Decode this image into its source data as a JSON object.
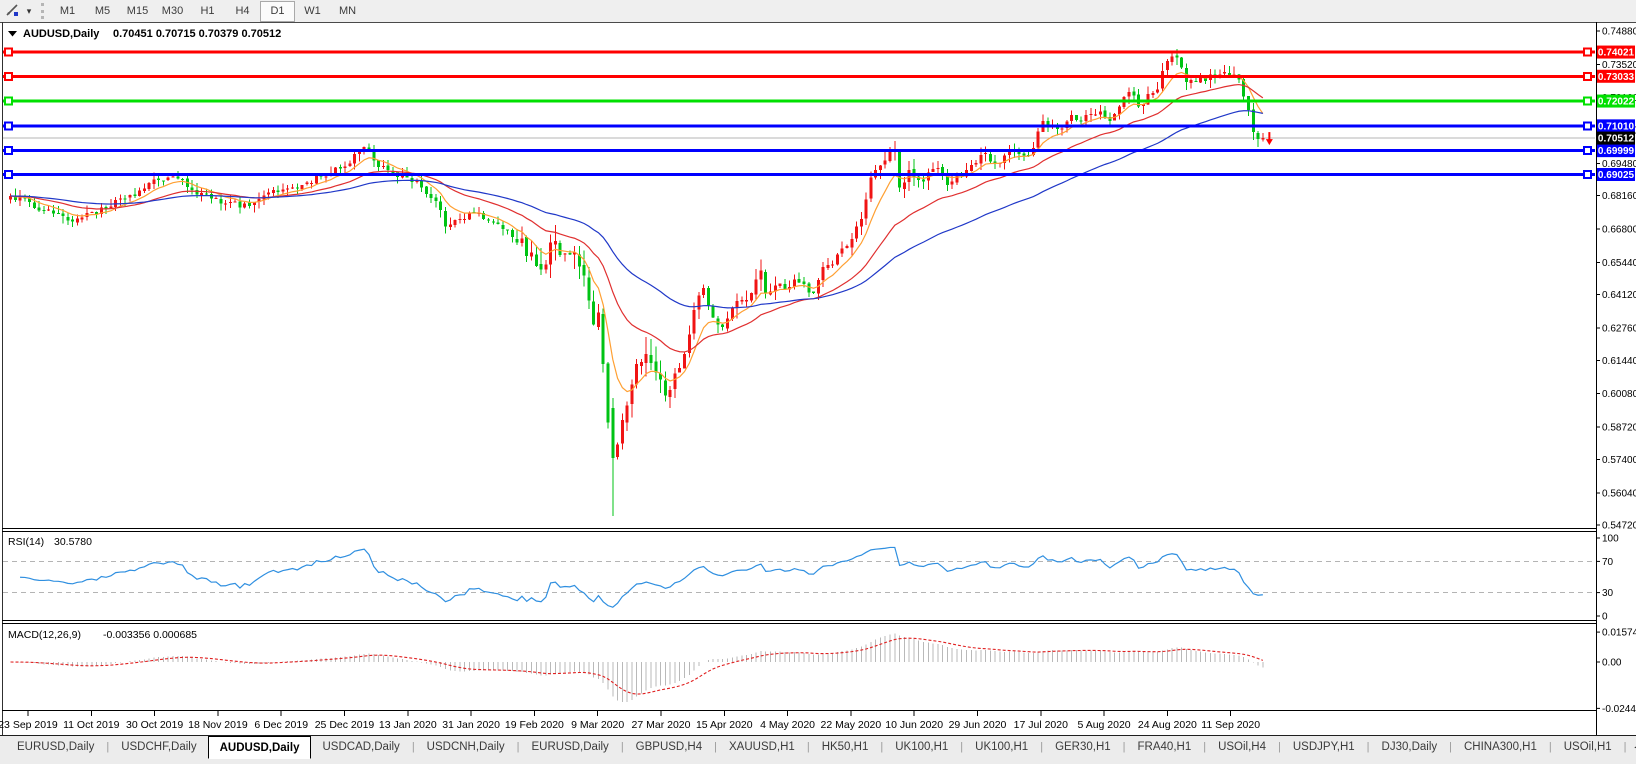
{
  "toolbar": {
    "tool_icon": "crosshair-tool",
    "tool_dropdown": "▾",
    "timeframes": [
      {
        "label": "M1",
        "active": false
      },
      {
        "label": "M5",
        "active": false
      },
      {
        "label": "M15",
        "active": false
      },
      {
        "label": "M30",
        "active": false
      },
      {
        "label": "H1",
        "active": false
      },
      {
        "label": "H4",
        "active": false
      },
      {
        "label": "D1",
        "active": true
      },
      {
        "label": "W1",
        "active": false
      },
      {
        "label": "MN",
        "active": false
      }
    ]
  },
  "chart": {
    "symbol_label": "AUDUSD,Daily",
    "ohlc": "0.70451 0.70715 0.70379 0.70512",
    "rsi_label": "RSI(14)",
    "rsi_value": "30.5780",
    "macd_label": "MACD(12,26,9)",
    "macd_values": "-0.003356 0.000685"
  },
  "chart_data": {
    "type": "candlestick",
    "symbol": "AUDUSD",
    "timeframe": "Daily",
    "last_ohlc": {
      "open": 0.70451,
      "high": 0.70715,
      "low": 0.70379,
      "close": 0.70512
    },
    "ylim": [
      0.5464,
      0.7505
    ],
    "y_ticks": [
      "0.74880",
      "0.73520",
      "0.72160",
      "0.70840",
      "0.69480",
      "0.68160",
      "0.66800",
      "0.65440",
      "0.64120",
      "0.62760",
      "0.61440",
      "0.60080",
      "0.58720",
      "0.57400",
      "0.56040",
      "0.54720"
    ],
    "x_labels": [
      "23 Sep 2019",
      "11 Oct 2019",
      "30 Oct 2019",
      "18 Nov 2019",
      "6 Dec 2019",
      "25 Dec 2019",
      "13 Jan 2020",
      "31 Jan 2020",
      "19 Feb 2020",
      "9 Mar 2020",
      "27 Mar 2020",
      "15 Apr 2020",
      "4 May 2020",
      "22 May 2020",
      "10 Jun 2020",
      "29 Jun 2020",
      "17 Jul 2020",
      "5 Aug 2020",
      "24 Aug 2020",
      "11 Sep 2020"
    ],
    "levels": [
      {
        "text": "0.74021",
        "value": 0.74021,
        "color": "#ff0000"
      },
      {
        "text": "0.73033",
        "value": 0.73033,
        "color": "#ff0000"
      },
      {
        "text": "0.72022",
        "value": 0.72022,
        "color": "#00e000"
      },
      {
        "text": "0.71010",
        "value": 0.7101,
        "color": "#0000ff"
      },
      {
        "text": "0.69999",
        "value": 0.69999,
        "color": "#0000ff"
      },
      {
        "text": "0.69025",
        "value": 0.69025,
        "color": "#0000ff"
      }
    ],
    "current_price": {
      "text": "0.70512",
      "value": 0.70512
    },
    "sell_marker": {
      "shape": "down-arrow",
      "color": "#ff0000",
      "price": 0.7047
    },
    "colors": {
      "up": "#f01414",
      "down": "#00c314",
      "ma_fast": "#ffa033",
      "ma_mid": "#e03030",
      "ma_slow": "#2038c8",
      "rsi": "#2f8fe0",
      "rsi_level": "#b4b4b4",
      "macd_hist": "#b9b9b9",
      "macd_signal": "#e02020",
      "current_line": "#b6b6b6",
      "level_label_current_bg": "#000000"
    },
    "ma_periods": {
      "fast": 8,
      "mid": 25,
      "slow": 55
    },
    "rsi": {
      "period": 14,
      "value": 30.578,
      "levels": [
        30,
        70
      ],
      "axis": [
        "100",
        "70",
        "30",
        "0"
      ]
    },
    "macd": {
      "fast": 12,
      "slow": 26,
      "signal": 9,
      "main": -0.003356,
      "signal_value": 0.000685,
      "axis": [
        "0.015741",
        "0.00",
        "-0.02441"
      ]
    },
    "candle_count": 263,
    "series_keyframes": [
      [
        0,
        0.6815
      ],
      [
        4,
        0.679
      ],
      [
        7,
        0.6755
      ],
      [
        10,
        0.6742
      ],
      [
        13,
        0.671
      ],
      [
        16,
        0.6745
      ],
      [
        20,
        0.6762
      ],
      [
        24,
        0.6805
      ],
      [
        28,
        0.6845
      ],
      [
        31,
        0.688
      ],
      [
        34,
        0.6895
      ],
      [
        38,
        0.684
      ],
      [
        42,
        0.6805
      ],
      [
        46,
        0.679
      ],
      [
        50,
        0.6775
      ],
      [
        54,
        0.683
      ],
      [
        58,
        0.6845
      ],
      [
        62,
        0.687
      ],
      [
        66,
        0.6895
      ],
      [
        70,
        0.6935
      ],
      [
        73,
        0.7
      ],
      [
        74,
        0.7015
      ],
      [
        76,
        0.696
      ],
      [
        79,
        0.692
      ],
      [
        83,
        0.689
      ],
      [
        86,
        0.685
      ],
      [
        89,
        0.6795
      ],
      [
        91,
        0.669
      ],
      [
        94,
        0.672
      ],
      [
        97,
        0.6745
      ],
      [
        100,
        0.6715
      ],
      [
        103,
        0.668
      ],
      [
        106,
        0.6625
      ],
      [
        109,
        0.6585
      ],
      [
        111,
        0.6515
      ],
      [
        113,
        0.6625
      ],
      [
        116,
        0.658
      ],
      [
        118,
        0.6585
      ],
      [
        120,
        0.649
      ],
      [
        122,
        0.629
      ],
      [
        123,
        0.634
      ],
      [
        124,
        0.613
      ],
      [
        125,
        0.589
      ],
      [
        126,
        0.5745
      ],
      [
        127,
        0.58
      ],
      [
        128,
        0.59
      ],
      [
        129,
        0.596
      ],
      [
        131,
        0.613
      ],
      [
        133,
        0.617
      ],
      [
        135,
        0.6095
      ],
      [
        137,
        0.6
      ],
      [
        139,
        0.609
      ],
      [
        141,
        0.617
      ],
      [
        143,
        0.635
      ],
      [
        145,
        0.644
      ],
      [
        147,
        0.632
      ],
      [
        149,
        0.628
      ],
      [
        151,
        0.636
      ],
      [
        153,
        0.639
      ],
      [
        155,
        0.642
      ],
      [
        157,
        0.651
      ],
      [
        158,
        0.642
      ],
      [
        160,
        0.645
      ],
      [
        162,
        0.6435
      ],
      [
        164,
        0.6475
      ],
      [
        166,
        0.6455
      ],
      [
        168,
        0.642
      ],
      [
        170,
        0.6525
      ],
      [
        172,
        0.6535
      ],
      [
        174,
        0.66
      ],
      [
        176,
        0.664
      ],
      [
        178,
        0.672
      ],
      [
        179,
        0.68
      ],
      [
        180,
        0.689
      ],
      [
        181,
        0.692
      ],
      [
        182,
        0.694
      ],
      [
        183,
        0.696
      ],
      [
        184,
        0.7
      ],
      [
        185,
        0.7
      ],
      [
        186,
        0.685
      ],
      [
        187,
        0.687
      ],
      [
        188,
        0.692
      ],
      [
        190,
        0.688
      ],
      [
        192,
        0.691
      ],
      [
        194,
        0.693
      ],
      [
        196,
        0.686
      ],
      [
        198,
        0.69
      ],
      [
        200,
        0.692
      ],
      [
        202,
        0.695
      ],
      [
        204,
        0.699
      ],
      [
        206,
        0.695
      ],
      [
        208,
        0.698
      ],
      [
        210,
        0.7
      ],
      [
        212,
        0.698
      ],
      [
        214,
        0.701
      ],
      [
        216,
        0.712
      ],
      [
        218,
        0.71
      ],
      [
        220,
        0.709
      ],
      [
        222,
        0.7145
      ],
      [
        224,
        0.712
      ],
      [
        226,
        0.715
      ],
      [
        228,
        0.716
      ],
      [
        230,
        0.712
      ],
      [
        232,
        0.718
      ],
      [
        234,
        0.724
      ],
      [
        236,
        0.718
      ],
      [
        238,
        0.723
      ],
      [
        240,
        0.725
      ],
      [
        242,
        0.7365
      ],
      [
        244,
        0.738
      ],
      [
        245,
        0.734
      ],
      [
        246,
        0.728
      ],
      [
        248,
        0.728
      ],
      [
        250,
        0.7285
      ],
      [
        252,
        0.73
      ],
      [
        254,
        0.732
      ],
      [
        256,
        0.731
      ],
      [
        257,
        0.729
      ],
      [
        258,
        0.722
      ],
      [
        259,
        0.7165
      ],
      [
        260,
        0.7075
      ],
      [
        261,
        0.7048
      ],
      [
        262,
        0.70512
      ]
    ],
    "overrides": [
      [
        126,
        0.595,
        0.599,
        0.551,
        0.5745
      ],
      [
        244,
        null,
        0.7414,
        null,
        null
      ],
      [
        262,
        0.70451,
        0.70715,
        0.70379,
        0.70512
      ]
    ],
    "noise_zones": [
      [
        106,
        136,
        0.004
      ],
      [
        137,
        160,
        0.0026
      ],
      [
        176,
        192,
        0.0024
      ],
      [
        240,
        262,
        0.0018
      ]
    ]
  },
  "tabs": {
    "items": [
      {
        "label": "EURUSD,Daily",
        "active": false
      },
      {
        "label": "USDCHF,Daily",
        "active": false
      },
      {
        "label": "AUDUSD,Daily",
        "active": true
      },
      {
        "label": "USDCAD,Daily",
        "active": false
      },
      {
        "label": "USDCNH,Daily",
        "active": false
      },
      {
        "label": "EURUSD,Daily",
        "active": false
      },
      {
        "label": "GBPUSD,H4",
        "active": false
      },
      {
        "label": "XAUUSD,H1",
        "active": false
      },
      {
        "label": "HK50,H1",
        "active": false
      },
      {
        "label": "UK100,H1",
        "active": false
      },
      {
        "label": "UK100,H1",
        "active": false
      },
      {
        "label": "GER30,H1",
        "active": false
      },
      {
        "label": "FRA40,H1",
        "active": false
      },
      {
        "label": "USOil,H4",
        "active": false
      },
      {
        "label": "USDJPY,H1",
        "active": false
      },
      {
        "label": "DJ30,Daily",
        "active": false
      },
      {
        "label": "CHINA300,H1",
        "active": false
      },
      {
        "label": "USOil,H1",
        "active": false
      }
    ],
    "scroll_left": "◄",
    "scroll_right": "►"
  }
}
